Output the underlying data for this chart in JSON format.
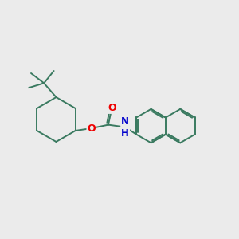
{
  "bg_color": "#ebebeb",
  "bond_color": "#3a7a60",
  "bond_width": 1.4,
  "atom_colors": {
    "O": "#ee0000",
    "N": "#0000cc",
    "C": "#3a7a60"
  },
  "figsize": [
    3.0,
    3.0
  ],
  "dpi": 100,
  "xlim": [
    0,
    10
  ],
  "ylim": [
    1,
    9
  ]
}
